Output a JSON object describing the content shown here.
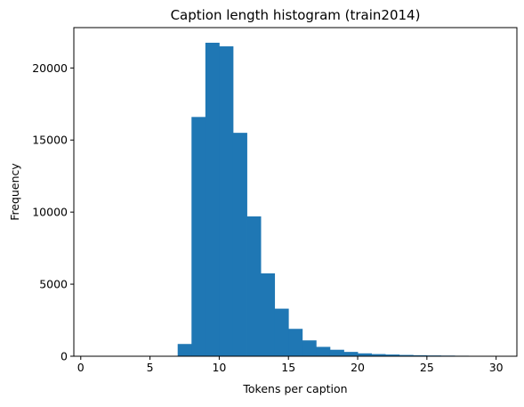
{
  "chart_data": {
    "type": "bar",
    "title": "Caption length histogram (train2014)",
    "xlabel": "Tokens per caption",
    "ylabel": "Frequency",
    "xlim": [
      -0.5,
      31.5
    ],
    "ylim": [
      0,
      22800
    ],
    "xticks": [
      0,
      5,
      10,
      15,
      20,
      25,
      30
    ],
    "xtick_labels": [
      "0",
      "5",
      "10",
      "15",
      "20",
      "25",
      "30"
    ],
    "yticks": [
      0,
      5000,
      10000,
      15000,
      20000
    ],
    "ytick_labels": [
      "0",
      "5000",
      "10000",
      "15000",
      "20000"
    ],
    "grid": false,
    "bar_color": "#1f77b4",
    "bins": [
      {
        "x0": 1,
        "x1": 2,
        "value": 0
      },
      {
        "x0": 2,
        "x1": 3,
        "value": 0
      },
      {
        "x0": 3,
        "x1": 4,
        "value": 0
      },
      {
        "x0": 4,
        "x1": 5,
        "value": 0
      },
      {
        "x0": 5,
        "x1": 6,
        "value": 0
      },
      {
        "x0": 6,
        "x1": 7,
        "value": 0
      },
      {
        "x0": 7,
        "x1": 8,
        "value": 850
      },
      {
        "x0": 8,
        "x1": 9,
        "value": 16600
      },
      {
        "x0": 9,
        "x1": 10,
        "value": 21750
      },
      {
        "x0": 10,
        "x1": 11,
        "value": 21500
      },
      {
        "x0": 11,
        "x1": 12,
        "value": 15500
      },
      {
        "x0": 12,
        "x1": 13,
        "value": 9700
      },
      {
        "x0": 13,
        "x1": 14,
        "value": 5750
      },
      {
        "x0": 14,
        "x1": 15,
        "value": 3300
      },
      {
        "x0": 15,
        "x1": 16,
        "value": 1900
      },
      {
        "x0": 16,
        "x1": 17,
        "value": 1100
      },
      {
        "x0": 17,
        "x1": 18,
        "value": 650
      },
      {
        "x0": 18,
        "x1": 19,
        "value": 450
      },
      {
        "x0": 19,
        "x1": 20,
        "value": 300
      },
      {
        "x0": 20,
        "x1": 21,
        "value": 200
      },
      {
        "x0": 21,
        "x1": 22,
        "value": 150
      },
      {
        "x0": 22,
        "x1": 23,
        "value": 120
      },
      {
        "x0": 23,
        "x1": 24,
        "value": 90
      },
      {
        "x0": 24,
        "x1": 25,
        "value": 70
      },
      {
        "x0": 25,
        "x1": 26,
        "value": 55
      },
      {
        "x0": 26,
        "x1": 27,
        "value": 45
      },
      {
        "x0": 27,
        "x1": 28,
        "value": 35
      },
      {
        "x0": 28,
        "x1": 29,
        "value": 30
      },
      {
        "x0": 29,
        "x1": 30,
        "value": 25
      }
    ]
  }
}
